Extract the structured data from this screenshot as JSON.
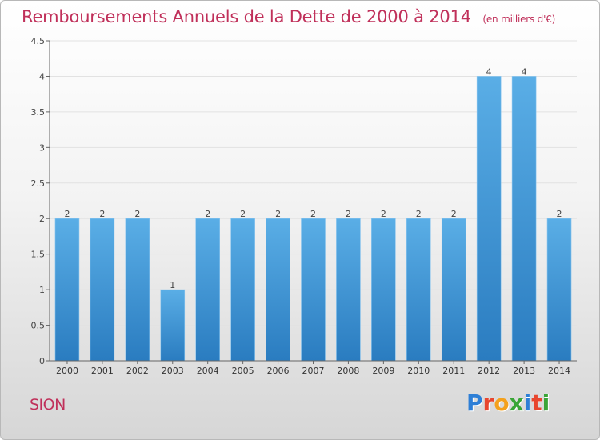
{
  "header": {
    "title": "Remboursements Annuels de la Dette de 2000 à 2014",
    "unit": "(en milliers d'€)"
  },
  "footer": {
    "town": "SION",
    "brand": "Proxiti",
    "brand_colors": [
      "#2e7fd6",
      "#e8462e",
      "#f4a11d",
      "#3aa537",
      "#2e7fd6",
      "#e8462e",
      "#3aa537"
    ]
  },
  "chart_data": {
    "type": "bar",
    "title": "Remboursements Annuels de la Dette de 2000 à 2014",
    "categories": [
      "2000",
      "2001",
      "2002",
      "2003",
      "2004",
      "2005",
      "2006",
      "2007",
      "2008",
      "2009",
      "2010",
      "2011",
      "2012",
      "2013",
      "2014"
    ],
    "values": [
      2,
      2,
      2,
      1,
      2,
      2,
      2,
      2,
      2,
      2,
      2,
      2,
      4,
      4,
      2
    ],
    "data_labels": [
      "2",
      "2",
      "2",
      "1",
      "2",
      "2",
      "2",
      "2",
      "2",
      "2",
      "2",
      "2",
      "4",
      "4",
      "2"
    ],
    "yticks": [
      "0",
      "0.5",
      "1",
      "1.5",
      "2",
      "2.5",
      "3",
      "3.5",
      "4",
      "4.5"
    ],
    "ylim": [
      0,
      4.5
    ],
    "grid": true,
    "bar_color_top": "#5aaee6",
    "bar_color_bottom": "#2a7cc0"
  }
}
